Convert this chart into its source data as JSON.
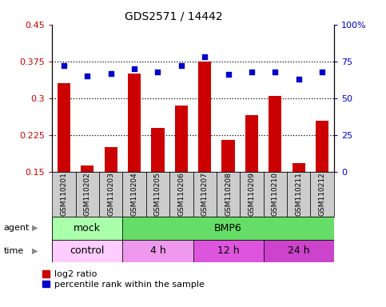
{
  "title": "GDS2571 / 14442",
  "samples": [
    "GSM110201",
    "GSM110202",
    "GSM110203",
    "GSM110204",
    "GSM110205",
    "GSM110206",
    "GSM110207",
    "GSM110208",
    "GSM110209",
    "GSM110210",
    "GSM110211",
    "GSM110212"
  ],
  "log2_ratio": [
    0.33,
    0.163,
    0.2,
    0.35,
    0.24,
    0.285,
    0.375,
    0.215,
    0.265,
    0.305,
    0.168,
    0.255
  ],
  "percentile": [
    72,
    65,
    67,
    70,
    68,
    72,
    78,
    66,
    68,
    68,
    63,
    68
  ],
  "bar_color": "#cc0000",
  "dot_color": "#0000cc",
  "ylim_left": [
    0.15,
    0.45
  ],
  "ylim_right": [
    0,
    100
  ],
  "yticks_left": [
    0.15,
    0.225,
    0.3,
    0.375,
    0.45
  ],
  "yticks_right": [
    0,
    25,
    50,
    75,
    100
  ],
  "ytick_labels_left": [
    "0.15",
    "0.225",
    "0.3",
    "0.375",
    "0.45"
  ],
  "ytick_labels_right": [
    "0",
    "25",
    "50",
    "75",
    "100%"
  ],
  "hlines": [
    0.225,
    0.3,
    0.375
  ],
  "agent_labels": [
    {
      "text": "mock",
      "start": 0,
      "end": 3,
      "color": "#aaffaa"
    },
    {
      "text": "BMP6",
      "start": 3,
      "end": 12,
      "color": "#66dd66"
    }
  ],
  "time_labels": [
    {
      "text": "control",
      "start": 0,
      "end": 3,
      "color": "#ffccff"
    },
    {
      "text": "4 h",
      "start": 3,
      "end": 6,
      "color": "#ee99ee"
    },
    {
      "text": "12 h",
      "start": 6,
      "end": 9,
      "color": "#dd55dd"
    },
    {
      "text": "24 h",
      "start": 9,
      "end": 12,
      "color": "#cc44cc"
    }
  ],
  "legend_bar_label": "log2 ratio",
  "legend_dot_label": "percentile rank within the sample",
  "xlabel_agent": "agent",
  "xlabel_time": "time",
  "bg_color_samples": "#cccccc",
  "bar_width": 0.55
}
